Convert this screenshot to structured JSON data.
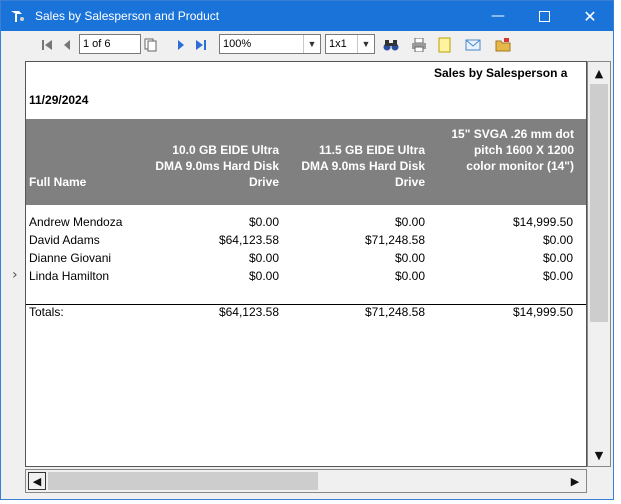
{
  "window": {
    "title": "Sales by Salesperson and Product"
  },
  "toolbar": {
    "page_value": "1 of 6",
    "zoom_value": "100%",
    "layout_value": "1x1"
  },
  "report": {
    "title": "Sales by Salesperson a",
    "date": "11/29/2024",
    "columns": [
      "Full Name",
      "10.0 GB EIDE Ultra DMA 9.0ms Hard Disk Drive",
      "11.5 GB EIDE Ultra DMA 9.0ms Hard Disk Drive",
      "15\" SVGA .26 mm dot pitch 1600 X 1200 color monitor (14\")"
    ],
    "rows": [
      [
        "Andrew Mendoza",
        "$0.00",
        "$0.00",
        "$14,999.50"
      ],
      [
        "David Adams",
        "$64,123.58",
        "$71,248.58",
        "$0.00"
      ],
      [
        "Dianne Giovani",
        "$0.00",
        "$0.00",
        "$0.00"
      ],
      [
        "Linda Hamilton",
        "$0.00",
        "$0.00",
        "$0.00"
      ]
    ],
    "totals": [
      "Totals:",
      "$64,123.58",
      "$71,248.58",
      "$14,999.50"
    ]
  }
}
